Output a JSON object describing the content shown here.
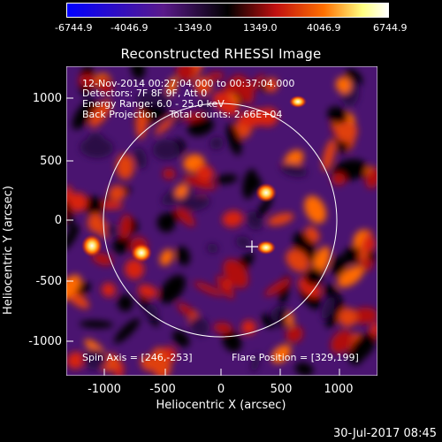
{
  "colorbar": {
    "ticks": [
      "-6744.9",
      "-4046.9",
      "-1349.0",
      "1349.0",
      "4046.9",
      "6744.9"
    ]
  },
  "title": "Reconstructed RHESSI Image",
  "overlay": {
    "line1": "12-Nov-2014 00:27:04.000 to 00:37:04.000",
    "line2": "Detectors: 7F 8F 9F, Att 0",
    "line3": "Energy Range: 6.0 - 25.0 keV",
    "line4": "Back Projection    Total counts: 2.66E+04",
    "spin_axis": "Spin Axis = [246,-253]",
    "flare_position": "Flare Position = [329,199]"
  },
  "axes": {
    "xlabel": "Heliocentric X (arcsec)",
    "ylabel": "Heliocentric Y (arcsec)",
    "xticks": [
      "-1000",
      "-500",
      "0",
      "500",
      "1000"
    ],
    "yticks": [
      "1000",
      "500",
      "0",
      "-500",
      "-1000"
    ]
  },
  "timestamp": "30-Jul-2017 08:45",
  "colors": {
    "background": "#000000",
    "colormap": [
      "#0000ff",
      "#5a1a8a",
      "#000000",
      "#c01010",
      "#ff7000",
      "#ffff80",
      "#ffffff"
    ]
  }
}
